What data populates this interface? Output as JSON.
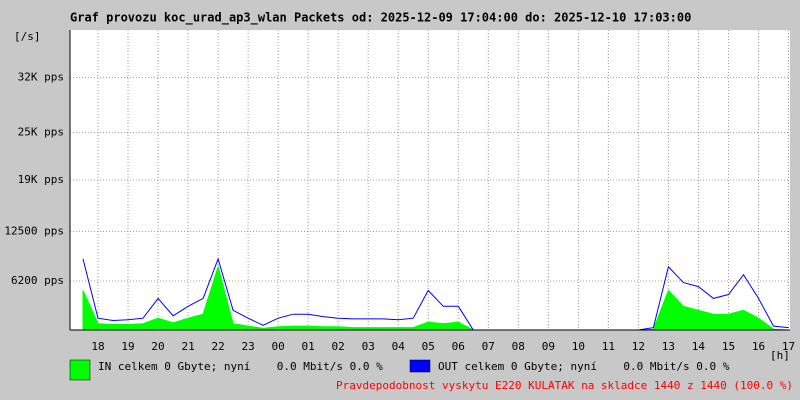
{
  "chart_data": {
    "type": "line",
    "title": "Graf provozu koc_urad_ap3_wlan Packets od: 2025-12-09 17:04:00 do: 2025-12-10 17:03:00",
    "y_label": "[/s]",
    "x_label": "[h]",
    "xlim": [
      17.0667,
      41.05
    ],
    "xticks": [
      {
        "value": 18,
        "label": "18"
      },
      {
        "value": 19,
        "label": "19"
      },
      {
        "value": 20,
        "label": "20"
      },
      {
        "value": 21,
        "label": "21"
      },
      {
        "value": 22,
        "label": "22"
      },
      {
        "value": 23,
        "label": "23"
      },
      {
        "value": 24,
        "label": "00"
      },
      {
        "value": 25,
        "label": "01"
      },
      {
        "value": 26,
        "label": "02"
      },
      {
        "value": 27,
        "label": "03"
      },
      {
        "value": 28,
        "label": "04"
      },
      {
        "value": 29,
        "label": "05"
      },
      {
        "value": 30,
        "label": "06"
      },
      {
        "value": 31,
        "label": "07"
      },
      {
        "value": 32,
        "label": "08"
      },
      {
        "value": 33,
        "label": "09"
      },
      {
        "value": 34,
        "label": "10"
      },
      {
        "value": 35,
        "label": "11"
      },
      {
        "value": 36,
        "label": "12"
      },
      {
        "value": 37,
        "label": "13"
      },
      {
        "value": 38,
        "label": "14"
      },
      {
        "value": 39,
        "label": "15"
      },
      {
        "value": 40,
        "label": "16"
      },
      {
        "value": 41,
        "label": "17"
      }
    ],
    "ylim": [
      0,
      38000
    ],
    "yticks": [
      {
        "value": 6200,
        "label": "6200 pps"
      },
      {
        "value": 12500,
        "label": "12500 pps"
      },
      {
        "value": 19000,
        "label": "19K pps"
      },
      {
        "value": 25000,
        "label": "25K pps"
      },
      {
        "value": 32000,
        "label": "32K pps"
      }
    ],
    "grid": true,
    "x": [
      17.5,
      18,
      18.5,
      19,
      19.5,
      20,
      20.5,
      21,
      21.5,
      22,
      22.5,
      23,
      23.5,
      24,
      24.5,
      25,
      25.5,
      26,
      26.5,
      27,
      27.5,
      28,
      28.5,
      29,
      29.5,
      30,
      30.5,
      31,
      31.5,
      32,
      32.5,
      33,
      33.5,
      34,
      34.5,
      35,
      35.5,
      36,
      36.5,
      37,
      37.5,
      38,
      38.5,
      39,
      39.5,
      40,
      40.5,
      41
    ],
    "series": [
      {
        "name": "IN celkem 0 Gbyte; nyní    0.0 Mbit/s 0.0 %",
        "color": "#00ff00",
        "style": "area",
        "values": [
          5000,
          800,
          700,
          700,
          800,
          1500,
          900,
          1500,
          2000,
          8000,
          800,
          500,
          200,
          400,
          500,
          500,
          400,
          400,
          300,
          300,
          300,
          300,
          300,
          1000,
          800,
          1000,
          0,
          0,
          0,
          0,
          0,
          0,
          0,
          0,
          0,
          0,
          0,
          0,
          100,
          5000,
          3000,
          2500,
          2000,
          2000,
          2500,
          1500,
          100,
          0
        ]
      },
      {
        "name": "OUT celkem 0 Gbyte; nyní    0.0 Mbit/s 0.0 %",
        "color": "#0000ff",
        "style": "line",
        "values": [
          9000,
          1500,
          1200,
          1300,
          1500,
          4000,
          1800,
          3000,
          4000,
          9000,
          2500,
          1500,
          600,
          1500,
          2000,
          2000,
          1700,
          1500,
          1400,
          1400,
          1400,
          1300,
          1500,
          5000,
          3000,
          3000,
          0,
          0,
          0,
          0,
          0,
          0,
          0,
          0,
          0,
          0,
          0,
          0,
          300,
          8000,
          6000,
          5500,
          4000,
          4500,
          7000,
          4000,
          500,
          300
        ]
      }
    ],
    "footer": "Pravdepodobnost vyskytu E220 KULATAK na skladce 1440 z 1440 (100.0 %)"
  }
}
